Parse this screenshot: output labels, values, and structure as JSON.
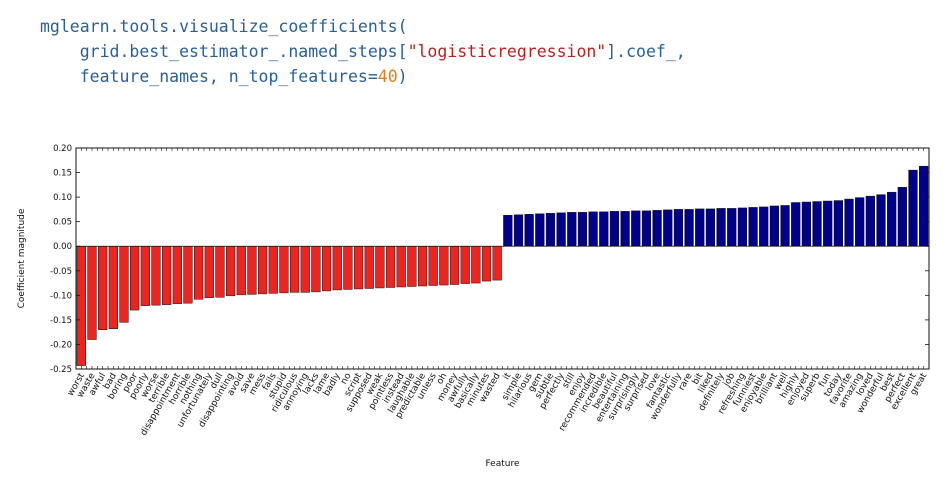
{
  "code": {
    "line1_prefix": "mglearn.tools.visualize_coefficients(",
    "line2_prefix": "    grid.best_estimator_.named_steps[",
    "line2_string": "\"logisticregression\"",
    "line2_suffix": "].coef_,",
    "line3_prefix": "    feature_names, n_top_features=",
    "line3_number": "40",
    "line3_suffix": ")"
  },
  "colors": {
    "negative": "#ec2520",
    "positive": "#00008b"
  },
  "chart_data": {
    "type": "bar",
    "xlabel": "Feature",
    "ylabel": "Coefficient magnitude",
    "ylim": [
      -0.25,
      0.2
    ],
    "yticks": [
      -0.25,
      -0.2,
      -0.15,
      -0.1,
      -0.05,
      0.0,
      0.05,
      0.1,
      0.15,
      0.2
    ],
    "ytick_labels": [
      "-0.25",
      "-0.20",
      "-0.15",
      "-0.10",
      "-0.05",
      "0.00",
      "0.05",
      "0.10",
      "0.15",
      "0.20"
    ],
    "grid": false,
    "categories": [
      "worst",
      "waste",
      "awful",
      "bad",
      "boring",
      "poor",
      "poorly",
      "worse",
      "terrible",
      "disappointment",
      "horrible",
      "nothing",
      "unfortunately",
      "dull",
      "disappointing",
      "avoid",
      "save",
      "mess",
      "fails",
      "stupid",
      "ridiculous",
      "annoying",
      "lacks",
      "lame",
      "badly",
      "no",
      "script",
      "supposed",
      "weak",
      "pointless",
      "instead",
      "laughable",
      "predictable",
      "unless",
      "oh",
      "money",
      "awfully",
      "basically",
      "minutes",
      "wasted",
      "it",
      "simple",
      "hilarious",
      "gem",
      "subtle",
      "perfectly",
      "still",
      "enjoy",
      "recommended",
      "incredible",
      "beautiful",
      "entertaining",
      "surprisingly",
      "surprised",
      "love",
      "fantastic",
      "wonderfully",
      "rare",
      "bit",
      "liked",
      "definitely",
      "job",
      "refreshing",
      "funniest",
      "enjoyable",
      "brilliant",
      "well",
      "highly",
      "enjoyed",
      "superb",
      "fun",
      "today",
      "favorite",
      "amazing",
      "loved",
      "wonderful",
      "best",
      "perfect",
      "excellent",
      "great"
    ],
    "values": [
      -0.243,
      -0.19,
      -0.17,
      -0.168,
      -0.155,
      -0.13,
      -0.121,
      -0.12,
      -0.119,
      -0.117,
      -0.116,
      -0.108,
      -0.105,
      -0.104,
      -0.101,
      -0.099,
      -0.098,
      -0.097,
      -0.096,
      -0.095,
      -0.094,
      -0.094,
      -0.093,
      -0.091,
      -0.089,
      -0.088,
      -0.087,
      -0.086,
      -0.085,
      -0.084,
      -0.083,
      -0.082,
      -0.081,
      -0.08,
      -0.079,
      -0.078,
      -0.076,
      -0.075,
      -0.071,
      -0.069,
      0.063,
      0.064,
      0.065,
      0.066,
      0.067,
      0.068,
      0.069,
      0.069,
      0.07,
      0.07,
      0.071,
      0.071,
      0.072,
      0.072,
      0.073,
      0.074,
      0.075,
      0.075,
      0.076,
      0.076,
      0.077,
      0.077,
      0.078,
      0.079,
      0.08,
      0.082,
      0.083,
      0.089,
      0.09,
      0.091,
      0.092,
      0.093,
      0.096,
      0.099,
      0.102,
      0.105,
      0.11,
      0.12,
      0.155,
      0.163
    ]
  }
}
